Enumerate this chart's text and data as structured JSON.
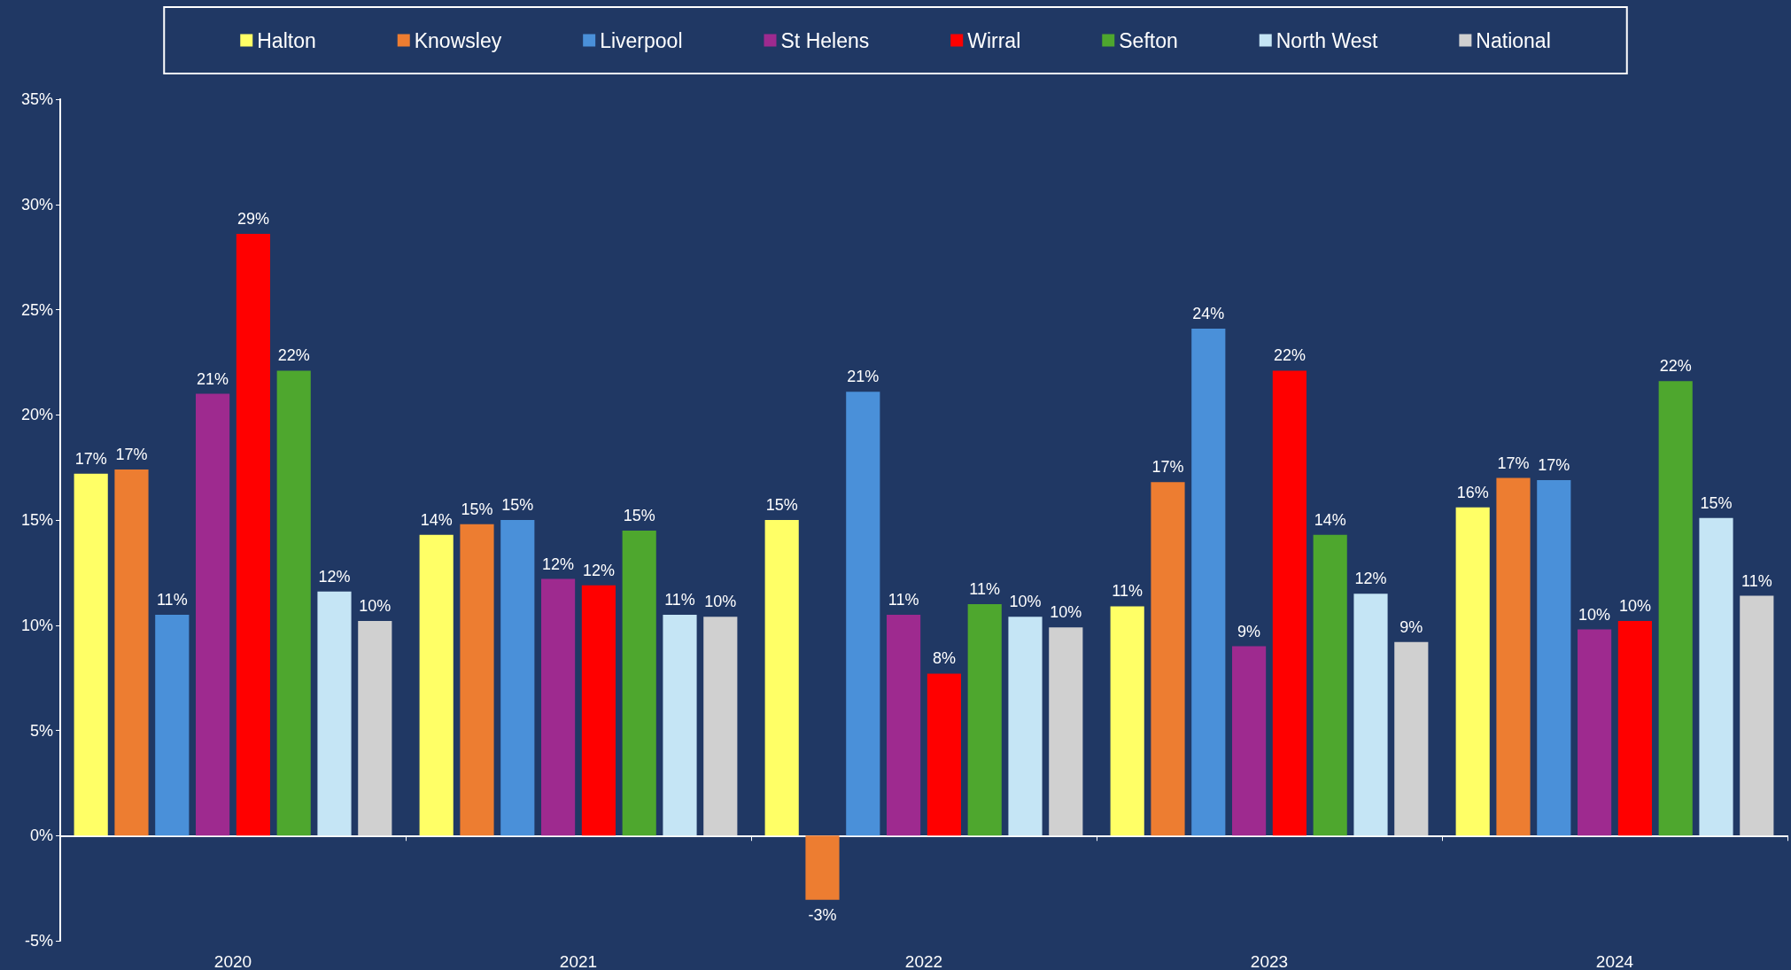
{
  "chart_data": {
    "type": "bar",
    "categories": [
      "2020",
      "2021",
      "2022",
      "2023",
      "2024"
    ],
    "series": [
      {
        "name": "Halton",
        "color": "#ffff66",
        "values": [
          17.2,
          14.3,
          15.0,
          10.9,
          15.6
        ],
        "value_labels": [
          "17%",
          "14%",
          "15%",
          "11%",
          "16%"
        ]
      },
      {
        "name": "Knowsley",
        "color": "#ed7d31",
        "values": [
          17.4,
          14.8,
          -3.05,
          16.8,
          17.0
        ],
        "value_labels": [
          "17%",
          "15%",
          "-3%",
          "17%",
          "17%"
        ]
      },
      {
        "name": "Liverpool",
        "color": "#4a90d9",
        "values": [
          10.5,
          15.0,
          21.1,
          24.1,
          16.9
        ],
        "value_labels": [
          "11%",
          "15%",
          "21%",
          "24%",
          "17%"
        ]
      },
      {
        "name": "St Helens",
        "color": "#9e2a8f",
        "values": [
          21.0,
          12.2,
          10.5,
          9.0,
          9.8
        ],
        "value_labels": [
          "21%",
          "12%",
          "11%",
          "9%",
          "10%"
        ]
      },
      {
        "name": "Wirral",
        "color": "#ff0000",
        "values": [
          28.6,
          11.9,
          7.7,
          22.1,
          10.2
        ],
        "value_labels": [
          "29%",
          "12%",
          "8%",
          "22%",
          "10%"
        ]
      },
      {
        "name": "Sefton",
        "color": "#4ea72e",
        "values": [
          22.1,
          14.5,
          11.0,
          14.3,
          21.6
        ],
        "value_labels": [
          "22%",
          "15%",
          "11%",
          "14%",
          "22%"
        ]
      },
      {
        "name": "North West",
        "color": "#c5e5f5",
        "values": [
          11.6,
          10.5,
          10.4,
          11.5,
          15.1
        ],
        "value_labels": [
          "12%",
          "11%",
          "10%",
          "12%",
          "15%"
        ]
      },
      {
        "name": "National",
        "color": "#d0d0d0",
        "values": [
          10.2,
          10.4,
          9.9,
          9.2,
          11.4
        ],
        "value_labels": [
          "10%",
          "10%",
          "10%",
          "9%",
          "11%"
        ]
      }
    ],
    "ylim": [
      -5,
      35
    ],
    "yticks": [
      {
        "value": -5,
        "label": "-5%"
      },
      {
        "value": 0,
        "label": "0%"
      },
      {
        "value": 5,
        "label": "5%"
      },
      {
        "value": 10,
        "label": "10%"
      },
      {
        "value": 15,
        "label": "15%"
      },
      {
        "value": 20,
        "label": "20%"
      },
      {
        "value": 25,
        "label": "25%"
      },
      {
        "value": 30,
        "label": "30%"
      },
      {
        "value": 35,
        "label": "35%"
      }
    ],
    "legend": "top"
  }
}
